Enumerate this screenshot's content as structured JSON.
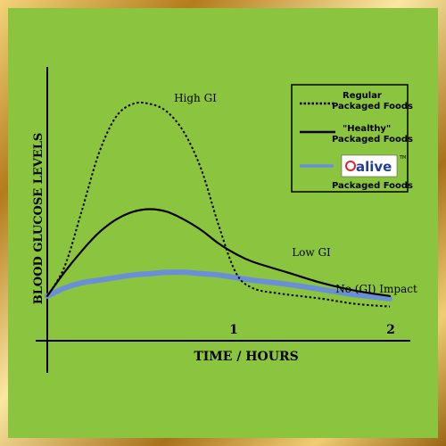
{
  "chart_data": {
    "type": "line",
    "xlabel": "TIME / HOURS",
    "ylabel": "BLOOD GLUCOSE LEVELS",
    "x_ticks": [
      "1",
      "2"
    ],
    "xlim": [
      0,
      2.2
    ],
    "ylim": [
      0,
      10
    ],
    "grid": false,
    "legend_position": "top-right",
    "series": [
      {
        "name": "Regular Packaged Foods",
        "style": "dotted",
        "color": "#000000",
        "annotation": "High GI",
        "x": [
          0,
          0.1,
          0.2,
          0.3,
          0.4,
          0.5,
          0.6,
          0.7,
          0.8,
          0.9,
          1.0,
          1.1,
          1.2,
          1.35,
          1.6,
          1.8,
          2.0
        ],
        "y": [
          1.7,
          2.8,
          4.9,
          7.1,
          8.5,
          9.0,
          9.0,
          8.7,
          7.9,
          6.5,
          4.4,
          2.6,
          2.0,
          1.8,
          1.6,
          1.4,
          1.3
        ]
      },
      {
        "name": "\"Healthy\" Packaged Foods",
        "style": "solid",
        "color": "#000000",
        "annotation": "Low GI",
        "x": [
          0,
          0.1,
          0.2,
          0.3,
          0.4,
          0.5,
          0.6,
          0.7,
          0.8,
          0.9,
          1.0,
          1.1,
          1.2,
          1.4,
          1.6,
          1.8,
          2.0
        ],
        "y": [
          1.7,
          2.6,
          3.4,
          4.1,
          4.6,
          4.9,
          5.0,
          4.9,
          4.6,
          4.2,
          3.7,
          3.3,
          3.0,
          2.6,
          2.2,
          1.9,
          1.7
        ]
      },
      {
        "name": "Packaged Foods",
        "style": "band",
        "color": "#6a8fd8",
        "annotation": "No (GI) Impact",
        "x": [
          0,
          0.1,
          0.2,
          0.3,
          0.4,
          0.5,
          0.6,
          0.7,
          0.8,
          0.9,
          1.0,
          1.1,
          1.2,
          1.4,
          1.6,
          1.8,
          2.0
        ],
        "y": [
          1.7,
          2.0,
          2.2,
          2.3,
          2.4,
          2.5,
          2.55,
          2.6,
          2.6,
          2.55,
          2.5,
          2.4,
          2.3,
          2.15,
          1.95,
          1.75,
          1.6
        ]
      }
    ]
  },
  "legend": {
    "items": [
      {
        "line1": "Regular",
        "line2": "Packaged Foods"
      },
      {
        "line1": "\"Healthy\"",
        "line2": "Packaged Foods"
      },
      {
        "logo": "alive",
        "line2": "Packaged Foods",
        "trademark": "TM"
      }
    ]
  },
  "colors": {
    "background": "#8bc53f",
    "frame": "#c9962f",
    "band": "#6a8fd8",
    "logo_red": "#e0242a",
    "logo_blue": "#1f3f95"
  }
}
